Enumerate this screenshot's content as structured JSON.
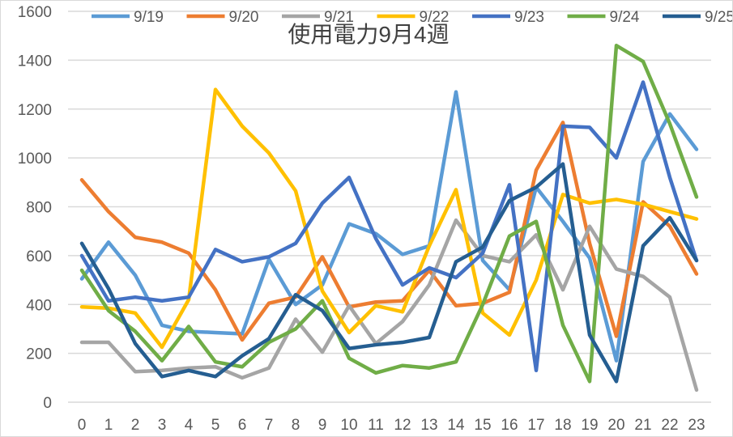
{
  "chart_data": {
    "type": "line",
    "title": "使用電力9月4週",
    "xlabel": "",
    "ylabel": "",
    "x": [
      0,
      1,
      2,
      3,
      4,
      5,
      6,
      7,
      8,
      9,
      10,
      11,
      12,
      13,
      14,
      15,
      16,
      17,
      18,
      19,
      20,
      21,
      22,
      23
    ],
    "ylim": [
      0,
      1600
    ],
    "yticks": [
      0,
      200,
      400,
      600,
      800,
      1000,
      1200,
      1400,
      1600
    ],
    "grid": true,
    "legend": "top",
    "series": [
      {
        "name": "9/19",
        "color": "#5b9bd5",
        "values": [
          505,
          655,
          520,
          315,
          290,
          285,
          280,
          585,
          400,
          480,
          730,
          690,
          605,
          640,
          1270,
          580,
          460,
          880,
          740,
          590,
          170,
          985,
          1180,
          1035
        ]
      },
      {
        "name": "9/20",
        "color": "#ed7d31",
        "values": [
          910,
          780,
          675,
          655,
          610,
          460,
          255,
          405,
          430,
          595,
          390,
          410,
          415,
          540,
          395,
          405,
          450,
          950,
          1145,
          650,
          270,
          820,
          720,
          525
        ]
      },
      {
        "name": "9/21",
        "color": "#a5a5a5",
        "values": [
          245,
          245,
          125,
          130,
          140,
          145,
          100,
          140,
          340,
          205,
          395,
          240,
          330,
          480,
          745,
          600,
          575,
          685,
          460,
          720,
          545,
          515,
          430,
          50
        ]
      },
      {
        "name": "9/22",
        "color": "#ffc000",
        "values": [
          390,
          385,
          365,
          225,
          420,
          1280,
          1130,
          1020,
          865,
          455,
          285,
          395,
          370,
          640,
          870,
          365,
          275,
          500,
          850,
          815,
          830,
          810,
          780,
          750
        ]
      },
      {
        "name": "9/23",
        "color": "#4472c4",
        "values": [
          600,
          415,
          430,
          415,
          430,
          625,
          575,
          595,
          650,
          815,
          920,
          670,
          480,
          550,
          510,
          610,
          890,
          130,
          1130,
          1125,
          1000,
          1310,
          920,
          580
        ]
      },
      {
        "name": "9/24",
        "color": "#70ad47",
        "values": [
          540,
          375,
          290,
          170,
          310,
          165,
          145,
          245,
          300,
          415,
          180,
          120,
          150,
          140,
          165,
          400,
          680,
          740,
          315,
          85,
          1460,
          1395,
          1140,
          840
        ]
      },
      {
        "name": "9/25",
        "color": "#255e91",
        "values": [
          650,
          465,
          240,
          105,
          130,
          105,
          190,
          260,
          440,
          375,
          220,
          235,
          245,
          265,
          575,
          635,
          825,
          880,
          975,
          275,
          85,
          640,
          755,
          580
        ]
      }
    ]
  }
}
